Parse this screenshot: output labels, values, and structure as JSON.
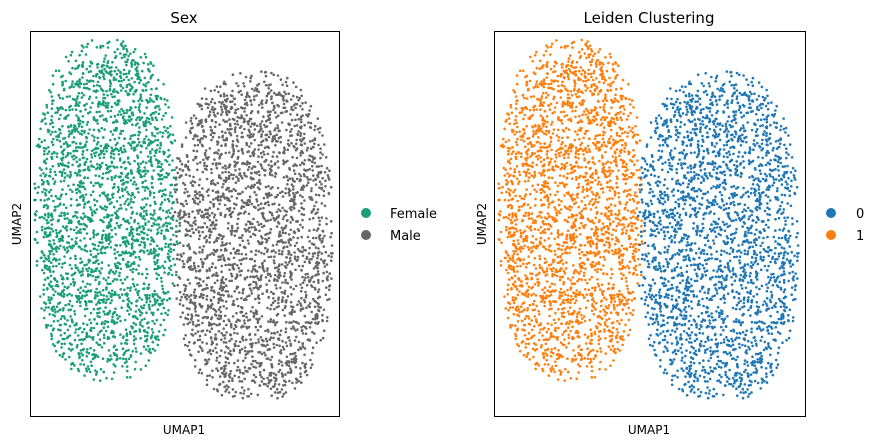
{
  "chart_data": [
    {
      "type": "scatter",
      "title": "Sex",
      "xlabel": "UMAP1",
      "ylabel": "UMAP2",
      "xticks": [],
      "yticks": [],
      "grid": false,
      "legend_position": "right",
      "series": [
        {
          "name": "Female",
          "color": "#1b9e77",
          "region": {
            "x_range": [
              0.1,
              4.8
            ],
            "y_range": [
              1.0,
              10.8
            ],
            "approx_points": 2500
          }
        },
        {
          "name": "Male",
          "color": "#666666",
          "region": {
            "x_range": [
              4.6,
              9.8
            ],
            "y_range": [
              0.4,
              9.9
            ],
            "approx_points": 2500
          }
        }
      ]
    },
    {
      "type": "scatter",
      "title": "Leiden Clustering",
      "xlabel": "UMAP1",
      "ylabel": "UMAP2",
      "xticks": [],
      "yticks": [],
      "grid": false,
      "legend_position": "right",
      "series": [
        {
          "name": "1",
          "color": "#ff7f0e",
          "region": {
            "x_range": [
              0.1,
              4.8
            ],
            "y_range": [
              1.0,
              10.8
            ],
            "approx_points": 2500
          }
        },
        {
          "name": "0",
          "color": "#1f77b4",
          "region": {
            "x_range": [
              4.6,
              9.8
            ],
            "y_range": [
              0.4,
              9.9
            ],
            "approx_points": 2500
          }
        }
      ]
    }
  ]
}
